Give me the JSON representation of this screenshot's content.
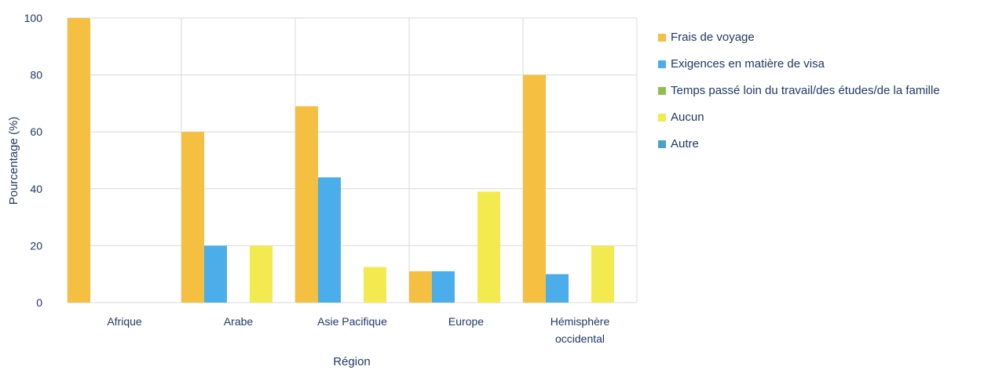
{
  "chart_data": {
    "type": "bar",
    "xlabel": "Région",
    "ylabel": "Pourcentage (%)",
    "ylim": [
      0,
      100
    ],
    "yticks": [
      0,
      20,
      40,
      60,
      80,
      100
    ],
    "grid": true,
    "legend_position": "right",
    "categories": [
      [
        "Afrique"
      ],
      [
        "Arabe"
      ],
      [
        "Asie Pacifique"
      ],
      [
        "Europe"
      ],
      [
        "Hémisphère",
        "occidental"
      ]
    ],
    "series": [
      {
        "name": "Frais de voyage",
        "color": "#f5bf42",
        "values": [
          100,
          60,
          69,
          11,
          80
        ]
      },
      {
        "name": "Exigences en matière de visa",
        "color": "#4baeea",
        "values": [
          0,
          20,
          44,
          11,
          10
        ]
      },
      {
        "name": "Temps passé loin du travail/des études/de la famille",
        "color": "#8fbe4f",
        "values": [
          0,
          0,
          0,
          0,
          0
        ]
      },
      {
        "name": "Aucun",
        "color": "#f3ea4f",
        "values": [
          0,
          20,
          12.5,
          39,
          20
        ]
      },
      {
        "name": "Autre",
        "color": "#4aa3c4",
        "values": [
          0,
          0,
          0,
          0,
          0
        ]
      }
    ]
  }
}
